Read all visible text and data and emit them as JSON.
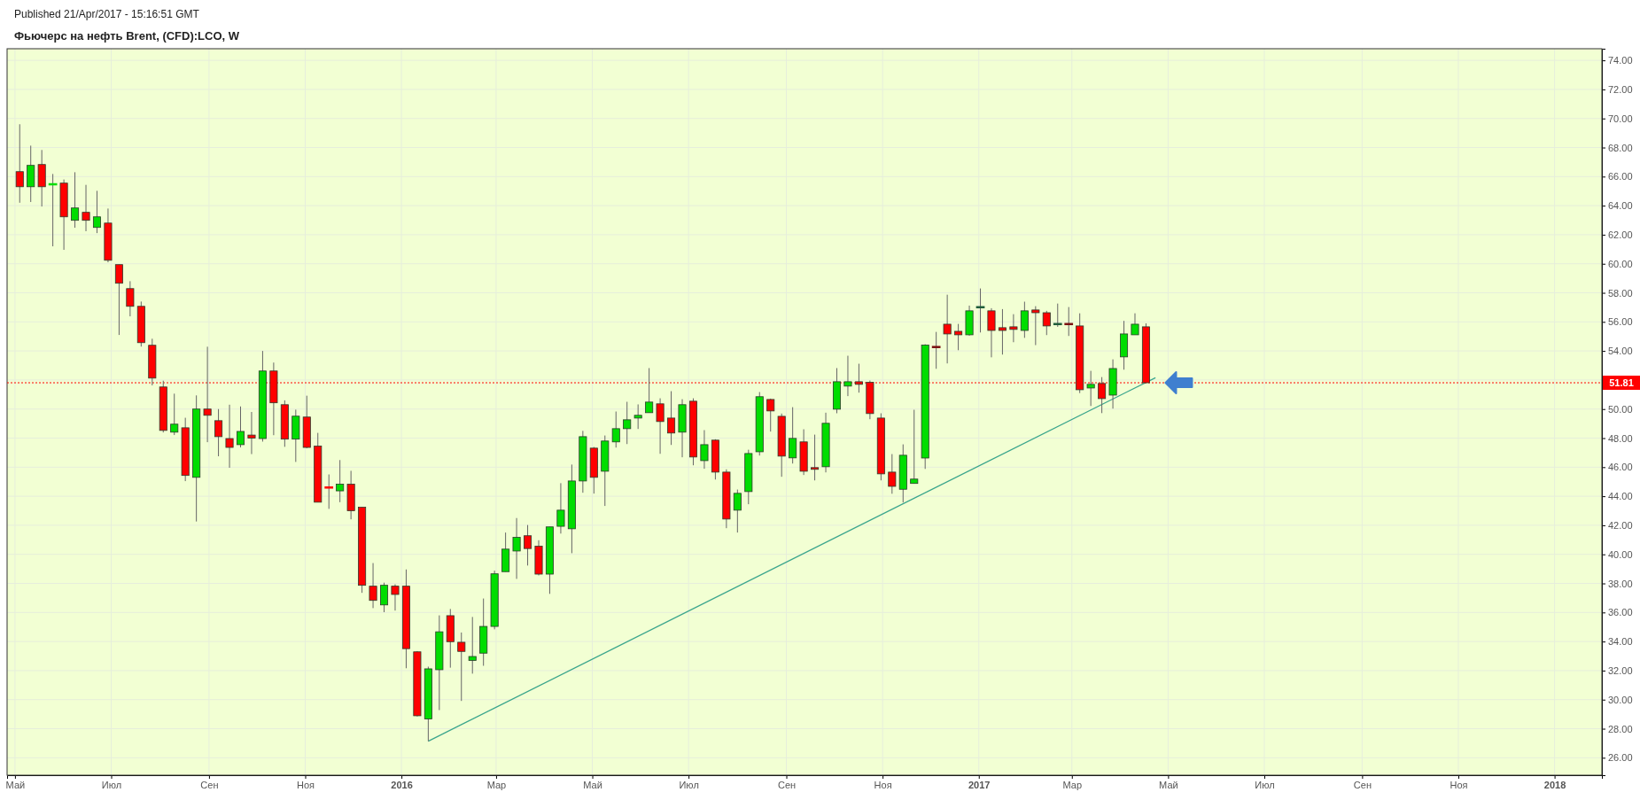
{
  "chart_data": {
    "type": "candlestick",
    "title": "Фьючерс на нефть Brent, (CFD):LCO, W",
    "annotations": [
      "Published 21/Apr/2017 - 15:16:51 GMT"
    ],
    "x": [
      "2015-05-04",
      "2015-05-11",
      "2015-05-18",
      "2015-05-25",
      "2015-06-01",
      "2015-06-08",
      "2015-06-15",
      "2015-06-22",
      "2015-06-29",
      "2015-07-06",
      "2015-07-13",
      "2015-07-20",
      "2015-07-27",
      "2015-08-03",
      "2015-08-10",
      "2015-08-17",
      "2015-08-24",
      "2015-08-31",
      "2015-09-07",
      "2015-09-14",
      "2015-09-21",
      "2015-09-28",
      "2015-10-05",
      "2015-10-12",
      "2015-10-19",
      "2015-10-26",
      "2015-11-02",
      "2015-11-09",
      "2015-11-16",
      "2015-11-23",
      "2015-11-30",
      "2015-12-07",
      "2015-12-14",
      "2015-12-21",
      "2015-12-28",
      "2016-01-04",
      "2016-01-11",
      "2016-01-18",
      "2016-01-25",
      "2016-02-01",
      "2016-02-08",
      "2016-02-15",
      "2016-02-22",
      "2016-02-29",
      "2016-03-07",
      "2016-03-14",
      "2016-03-21",
      "2016-03-28",
      "2016-04-04",
      "2016-04-11",
      "2016-04-18",
      "2016-04-25",
      "2016-05-02",
      "2016-05-09",
      "2016-05-16",
      "2016-05-23",
      "2016-05-30",
      "2016-06-06",
      "2016-06-13",
      "2016-06-20",
      "2016-06-27",
      "2016-07-04",
      "2016-07-11",
      "2016-07-18",
      "2016-07-25",
      "2016-08-01",
      "2016-08-08",
      "2016-08-15",
      "2016-08-22",
      "2016-08-29",
      "2016-09-05",
      "2016-09-12",
      "2016-09-19",
      "2016-09-26",
      "2016-10-03",
      "2016-10-10",
      "2016-10-17",
      "2016-10-24",
      "2016-10-31",
      "2016-11-07",
      "2016-11-14",
      "2016-11-21",
      "2016-11-28",
      "2016-12-05",
      "2016-12-12",
      "2016-12-19",
      "2016-12-26",
      "2017-01-02",
      "2017-01-09",
      "2017-01-16",
      "2017-01-23",
      "2017-01-30",
      "2017-02-06",
      "2017-02-13",
      "2017-02-20",
      "2017-02-27",
      "2017-03-06",
      "2017-03-13",
      "2017-03-20",
      "2017-03-27",
      "2017-04-03",
      "2017-04-10",
      "2017-04-17"
    ],
    "ohlc": [
      [
        66.34,
        69.6,
        64.2,
        65.3
      ],
      [
        65.3,
        68.13,
        64.25,
        66.77
      ],
      [
        66.83,
        67.83,
        63.94,
        65.3
      ],
      [
        65.5,
        66.18,
        61.2,
        65.5
      ],
      [
        65.55,
        65.8,
        60.96,
        63.23
      ],
      [
        62.99,
        66.3,
        62.48,
        63.84
      ],
      [
        63.54,
        65.43,
        62.24,
        62.99
      ],
      [
        62.5,
        65.02,
        62.11,
        63.23
      ],
      [
        62.8,
        63.8,
        60.1,
        60.24
      ],
      [
        59.94,
        59.94,
        55.1,
        58.66
      ],
      [
        58.29,
        58.8,
        56.38,
        57.07
      ],
      [
        57.07,
        57.4,
        54.3,
        54.57
      ],
      [
        54.39,
        54.84,
        51.63,
        52.13
      ],
      [
        51.52,
        51.95,
        48.39,
        48.53
      ],
      [
        48.41,
        51.06,
        48.21,
        48.96
      ],
      [
        48.71,
        49.4,
        45.04,
        45.43
      ],
      [
        45.3,
        50.94,
        42.26,
        50.0
      ],
      [
        50.0,
        54.29,
        47.72,
        49.57
      ],
      [
        49.2,
        50.0,
        46.75,
        48.1
      ],
      [
        47.97,
        50.3,
        45.96,
        47.36
      ],
      [
        47.55,
        50.18,
        47.36,
        48.46
      ],
      [
        48.21,
        49.8,
        46.9,
        48.0
      ],
      [
        47.97,
        54.0,
        47.76,
        52.62
      ],
      [
        52.62,
        53.2,
        48.2,
        50.43
      ],
      [
        50.3,
        50.6,
        47.4,
        47.93
      ],
      [
        47.93,
        49.96,
        46.36,
        49.51
      ],
      [
        49.45,
        50.92,
        47.3,
        47.36
      ],
      [
        47.45,
        48.36,
        43.59,
        43.59
      ],
      [
        44.63,
        45.5,
        43.13,
        44.63
      ],
      [
        44.37,
        46.49,
        43.59,
        44.83
      ],
      [
        44.83,
        45.75,
        42.41,
        43.0
      ],
      [
        43.24,
        43.24,
        37.35,
        37.87
      ],
      [
        37.81,
        39.4,
        36.3,
        36.83
      ],
      [
        36.52,
        38.05,
        36.02,
        37.87
      ],
      [
        37.81,
        37.94,
        36.13,
        37.24
      ],
      [
        37.81,
        38.96,
        32.16,
        33.51
      ],
      [
        33.29,
        33.34,
        28.84,
        28.89
      ],
      [
        28.67,
        32.27,
        27.14,
        32.12
      ],
      [
        32.06,
        35.8,
        29.28,
        34.67
      ],
      [
        35.78,
        36.24,
        32.2,
        33.99
      ],
      [
        33.95,
        34.62,
        29.91,
        33.32
      ],
      [
        32.7,
        35.69,
        31.79,
        32.97
      ],
      [
        33.2,
        36.96,
        32.33,
        35.04
      ],
      [
        35.04,
        38.88,
        34.84,
        38.66
      ],
      [
        38.81,
        41.5,
        38.81,
        40.36
      ],
      [
        40.23,
        42.5,
        38.31,
        41.17
      ],
      [
        41.28,
        42.02,
        39.23,
        40.4
      ],
      [
        40.56,
        40.97,
        38.55,
        38.64
      ],
      [
        38.64,
        41.89,
        37.28,
        41.89
      ],
      [
        41.93,
        44.9,
        41.43,
        43.04
      ],
      [
        41.76,
        46.18,
        40.08,
        45.05
      ],
      [
        45.05,
        48.5,
        44.24,
        48.1
      ],
      [
        47.31,
        47.39,
        44.18,
        45.3
      ],
      [
        45.72,
        48.18,
        43.33,
        47.8
      ],
      [
        47.74,
        49.83,
        47.35,
        48.65
      ],
      [
        48.65,
        50.5,
        47.59,
        49.26
      ],
      [
        49.38,
        50.32,
        48.63,
        49.57
      ],
      [
        49.75,
        52.82,
        49.75,
        50.48
      ],
      [
        50.36,
        50.74,
        46.92,
        49.14
      ],
      [
        49.38,
        51.23,
        47.53,
        48.35
      ],
      [
        48.41,
        50.68,
        46.68,
        50.3
      ],
      [
        50.54,
        50.74,
        46.13,
        46.7
      ],
      [
        46.45,
        48.55,
        45.89,
        47.55
      ],
      [
        47.86,
        47.92,
        45.15,
        45.66
      ],
      [
        45.66,
        45.85,
        41.8,
        42.43
      ],
      [
        43.04,
        44.46,
        41.5,
        44.2
      ],
      [
        44.32,
        47.2,
        43.45,
        46.94
      ],
      [
        47.06,
        51.17,
        46.8,
        50.85
      ],
      [
        50.66,
        50.72,
        48.45,
        49.87
      ],
      [
        49.5,
        49.69,
        45.34,
        46.76
      ],
      [
        46.64,
        50.13,
        46.25,
        47.98
      ],
      [
        47.74,
        48.61,
        45.46,
        45.72
      ],
      [
        45.97,
        48.24,
        45.09,
        45.85
      ],
      [
        46.03,
        49.75,
        45.64,
        49.02
      ],
      [
        49.99,
        52.82,
        49.71,
        51.88
      ],
      [
        51.58,
        53.67,
        50.89,
        51.88
      ],
      [
        51.88,
        53.12,
        51.13,
        51.7
      ],
      [
        51.84,
        51.96,
        49.3,
        49.69
      ],
      [
        49.38,
        49.71,
        45.09,
        45.54
      ],
      [
        45.66,
        46.9,
        44.17,
        44.68
      ],
      [
        44.48,
        47.57,
        43.57,
        46.82
      ],
      [
        44.88,
        49.95,
        44.88,
        45.18
      ],
      [
        46.63,
        54.46,
        45.88,
        54.4
      ],
      [
        54.3,
        55.31,
        52.77,
        54.3
      ],
      [
        55.84,
        57.87,
        53.14,
        55.17
      ],
      [
        55.35,
        55.86,
        54.05,
        55.11
      ],
      [
        55.11,
        57.12,
        55.05,
        56.76
      ],
      [
        57.04,
        58.3,
        55.27,
        57.04
      ],
      [
        56.76,
        56.94,
        53.56,
        55.41
      ],
      [
        55.6,
        56.88,
        53.75,
        55.41
      ],
      [
        55.66,
        56.53,
        54.6,
        55.48
      ],
      [
        55.41,
        57.39,
        54.9,
        56.76
      ],
      [
        56.82,
        57.08,
        54.4,
        56.63
      ],
      [
        56.63,
        56.76,
        55.09,
        55.72
      ],
      [
        55.88,
        57.26,
        55.66,
        55.88
      ],
      [
        55.88,
        57.02,
        55.03,
        55.88
      ],
      [
        55.72,
        56.59,
        51.1,
        51.33
      ],
      [
        51.45,
        52.63,
        50.21,
        51.7
      ],
      [
        51.76,
        52.2,
        49.72,
        50.72
      ],
      [
        50.96,
        53.42,
        50.03,
        52.79
      ],
      [
        53.59,
        56.07,
        52.71,
        55.17
      ],
      [
        55.11,
        56.59,
        55.11,
        55.84
      ],
      [
        55.66,
        55.9,
        51.81,
        51.81
      ]
    ],
    "colors": [
      "#ff0000",
      "#00dd00",
      "#ff0000",
      "#00dd00",
      "#ff0000",
      "#00dd00",
      "#ff0000",
      "#00dd00",
      "#ff0000",
      "#ff0000",
      "#ff0000",
      "#ff0000",
      "#ff0000",
      "#ff0000",
      "#00dd00",
      "#ff0000",
      "#00dd00",
      "#ff0000",
      "#ff0000",
      "#ff0000",
      "#00dd00",
      "#ff0000",
      "#00dd00",
      "#ff0000",
      "#ff0000",
      "#00dd00",
      "#ff0000",
      "#ff0000",
      "#ff0000",
      "#00dd00",
      "#ff0000",
      "#ff0000",
      "#ff0000",
      "#00dd00",
      "#ff0000",
      "#ff0000",
      "#ff0000",
      "#00dd00",
      "#00dd00",
      "#ff0000",
      "#ff0000",
      "#00dd00",
      "#00dd00",
      "#00dd00",
      "#00dd00",
      "#00dd00",
      "#ff0000",
      "#ff0000",
      "#00dd00",
      "#00dd00",
      "#00dd00",
      "#00dd00",
      "#ff0000",
      "#00dd00",
      "#00dd00",
      "#00dd00",
      "#00dd00",
      "#00dd00",
      "#ff0000",
      "#ff0000",
      "#00dd00",
      "#ff0000",
      "#00dd00",
      "#ff0000",
      "#ff0000",
      "#00dd00",
      "#00dd00",
      "#00dd00",
      "#ff0000",
      "#ff0000",
      "#00dd00",
      "#ff0000",
      "#ff0000",
      "#00dd00",
      "#00dd00",
      "#00dd00",
      "#ff0000",
      "#ff0000",
      "#ff0000",
      "#ff0000",
      "#00dd00",
      "#00dd00",
      "#00dd00",
      "#7a1010",
      "#ff0000",
      "#ff0000",
      "#00dd00",
      "#1e5c3a",
      "#ff0000",
      "#ff0000",
      "#ff0000",
      "#00dd00",
      "#ff0000",
      "#ff0000",
      "#1e5c3a",
      "#7a1010",
      "#ff0000",
      "#00dd00",
      "#ff0000",
      "#00dd00",
      "#00dd00",
      "#00dd00",
      "#ff0000"
    ],
    "series": [
      {
        "type": "line",
        "x": [
          "2016-01-18",
          "2017-04-23"
        ],
        "values": [
          27.14,
          52.16
        ],
        "color": "#3aa58c"
      }
    ],
    "ref_lines": [
      {
        "axis": "y",
        "value": 51.81,
        "label": "51.81",
        "color": "#ff0000",
        "line_style": "dotted"
      }
    ],
    "xlim": [
      "2015-04-26",
      "2018-01-31"
    ],
    "xticks": [
      {
        "value": "2015-05-01",
        "label": "Май"
      },
      {
        "value": "2015-07-01",
        "label": "Июл"
      },
      {
        "value": "2015-09-01",
        "label": "Сен"
      },
      {
        "value": "2015-11-01",
        "label": "Ноя"
      },
      {
        "value": "2016-01-01",
        "label": "2016"
      },
      {
        "value": "2016-03-01",
        "label": "Мар"
      },
      {
        "value": "2016-05-01",
        "label": "Май"
      },
      {
        "value": "2016-07-01",
        "label": "Июл"
      },
      {
        "value": "2016-09-01",
        "label": "Сен"
      },
      {
        "value": "2016-11-01",
        "label": "Ноя"
      },
      {
        "value": "2017-01-01",
        "label": "2017"
      },
      {
        "value": "2017-03-01",
        "label": "Мар"
      },
      {
        "value": "2017-05-01",
        "label": "Май"
      },
      {
        "value": "2017-07-01",
        "label": "Июл"
      },
      {
        "value": "2017-09-01",
        "label": "Сен"
      },
      {
        "value": "2017-11-01",
        "label": "Ноя"
      },
      {
        "value": "2018-01-01",
        "label": "2018"
      }
    ],
    "ylim": [
      24.8,
      74.8
    ],
    "yticks": [
      {
        "value": 26,
        "label": "26.00"
      },
      {
        "value": 28,
        "label": "28.00"
      },
      {
        "value": 30,
        "label": "30.00"
      },
      {
        "value": 32,
        "label": "32.00"
      },
      {
        "value": 34,
        "label": "34.00"
      },
      {
        "value": 36,
        "label": "36.00"
      },
      {
        "value": 38,
        "label": "38.00"
      },
      {
        "value": 40,
        "label": "40.00"
      },
      {
        "value": 42,
        "label": "42.00"
      },
      {
        "value": 44,
        "label": "44.00"
      },
      {
        "value": 46,
        "label": "46.00"
      },
      {
        "value": 48,
        "label": "48.00"
      },
      {
        "value": 50,
        "label": "50.00"
      },
      {
        "value": 52,
        "label": null
      },
      {
        "value": 54,
        "label": "54.00"
      },
      {
        "value": 56,
        "label": "56.00"
      },
      {
        "value": 58,
        "label": "58.00"
      },
      {
        "value": 60,
        "label": "60.00"
      },
      {
        "value": 62,
        "label": "62.00"
      },
      {
        "value": 64,
        "label": "64.00"
      },
      {
        "value": 66,
        "label": "66.00"
      },
      {
        "value": 68,
        "label": "68.00"
      },
      {
        "value": 70,
        "label": "70.00"
      },
      {
        "value": 72,
        "label": "72.00"
      },
      {
        "value": 74,
        "label": "74.00"
      }
    ],
    "grid": true
  }
}
